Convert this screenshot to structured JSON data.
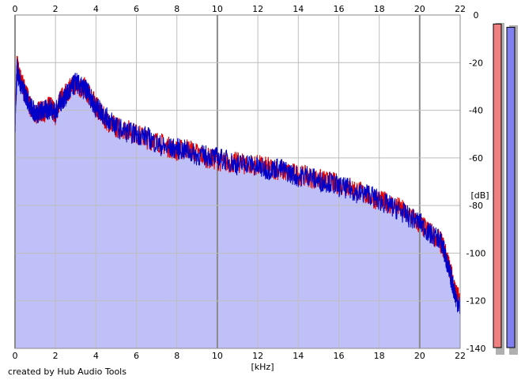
{
  "credit": "created by Hub Audio Tools",
  "colors": {
    "background": "#ffffff",
    "plot_fill": "#c0c0f8",
    "grid_minor": "#bdbdbd",
    "grid_major": "#8a8a8a",
    "left_channel": "#e00000",
    "right_channel": "#0000c8",
    "left_meter": "#f08080",
    "right_meter": "#8080f0",
    "meter_border": "#000000",
    "meter_shadow": "#b0b0b0"
  },
  "meters": [
    {
      "channel": "left",
      "level_fraction": 0.98
    },
    {
      "channel": "right",
      "level_fraction": 0.97
    }
  ],
  "chart_data": {
    "type": "line",
    "title": "",
    "xlabel": "[kHz]",
    "ylabel": "[dB]",
    "xlim": [
      0,
      22
    ],
    "ylim": [
      -140,
      0
    ],
    "x_ticks": [
      0,
      2,
      4,
      6,
      8,
      10,
      12,
      14,
      16,
      18,
      20,
      22
    ],
    "x_tick_labels": [
      "0",
      "2",
      "4",
      "6",
      "8",
      "10",
      "12",
      "14",
      "16",
      "18",
      "20",
      "22"
    ],
    "y_ticks": [
      0,
      -20,
      -40,
      -60,
      -80,
      -100,
      -120,
      -140
    ],
    "y_tick_labels": [
      "0",
      "-20",
      "-40",
      "-60",
      "-80",
      "-100",
      "-120",
      "-140"
    ],
    "grid": true,
    "x_tick_labels_position": "top and bottom",
    "y_tick_labels_position": "right",
    "legend": "none",
    "x": [
      0,
      0.1,
      0.2,
      0.4,
      0.6,
      0.8,
      1.0,
      1.2,
      1.4,
      1.6,
      1.8,
      2.0,
      2.2,
      2.4,
      2.6,
      2.8,
      3.0,
      3.2,
      3.4,
      3.6,
      3.8,
      4.0,
      4.2,
      4.5,
      4.8,
      5.0,
      5.5,
      6.0,
      6.5,
      7.0,
      7.5,
      8.0,
      8.5,
      9.0,
      9.5,
      10.0,
      10.5,
      11.0,
      11.5,
      12.0,
      12.5,
      13.0,
      13.5,
      14.0,
      14.5,
      15.0,
      15.5,
      16.0,
      16.5,
      17.0,
      17.5,
      18.0,
      18.5,
      19.0,
      19.5,
      20.0,
      20.5,
      21.0,
      21.2,
      21.4,
      21.6,
      21.8,
      22.0
    ],
    "series": [
      {
        "channel": "left",
        "color": "#e00000",
        "values": [
          -46,
          -20,
          -25,
          -30,
          -34,
          -40,
          -42,
          -40,
          -41,
          -39,
          -38,
          -42,
          -36,
          -34,
          -32,
          -30,
          -29,
          -31,
          -30,
          -33,
          -35,
          -38,
          -41,
          -44,
          -46,
          -47,
          -48,
          -50,
          -52,
          -53,
          -55,
          -57,
          -56,
          -58,
          -60,
          -61,
          -62,
          -62,
          -63,
          -63,
          -64,
          -65,
          -66,
          -67,
          -68,
          -69,
          -70,
          -71,
          -72,
          -74,
          -76,
          -78,
          -79,
          -81,
          -84,
          -88,
          -91,
          -95,
          -98,
          -104,
          -110,
          -117,
          -120
        ]
      },
      {
        "channel": "right",
        "color": "#0000c8",
        "values": [
          -48,
          -22,
          -27,
          -32,
          -35,
          -39,
          -41,
          -41,
          -40,
          -40,
          -39,
          -41,
          -37,
          -35,
          -33,
          -31,
          -28,
          -30,
          -31,
          -32,
          -36,
          -39,
          -40,
          -43,
          -45,
          -47,
          -49,
          -50,
          -51,
          -54,
          -56,
          -56,
          -57,
          -59,
          -59,
          -60,
          -61,
          -63,
          -62,
          -64,
          -65,
          -64,
          -66,
          -68,
          -67,
          -70,
          -70,
          -72,
          -73,
          -75,
          -75,
          -78,
          -80,
          -82,
          -85,
          -87,
          -92,
          -94,
          -99,
          -106,
          -112,
          -119,
          -123
        ]
      }
    ]
  }
}
